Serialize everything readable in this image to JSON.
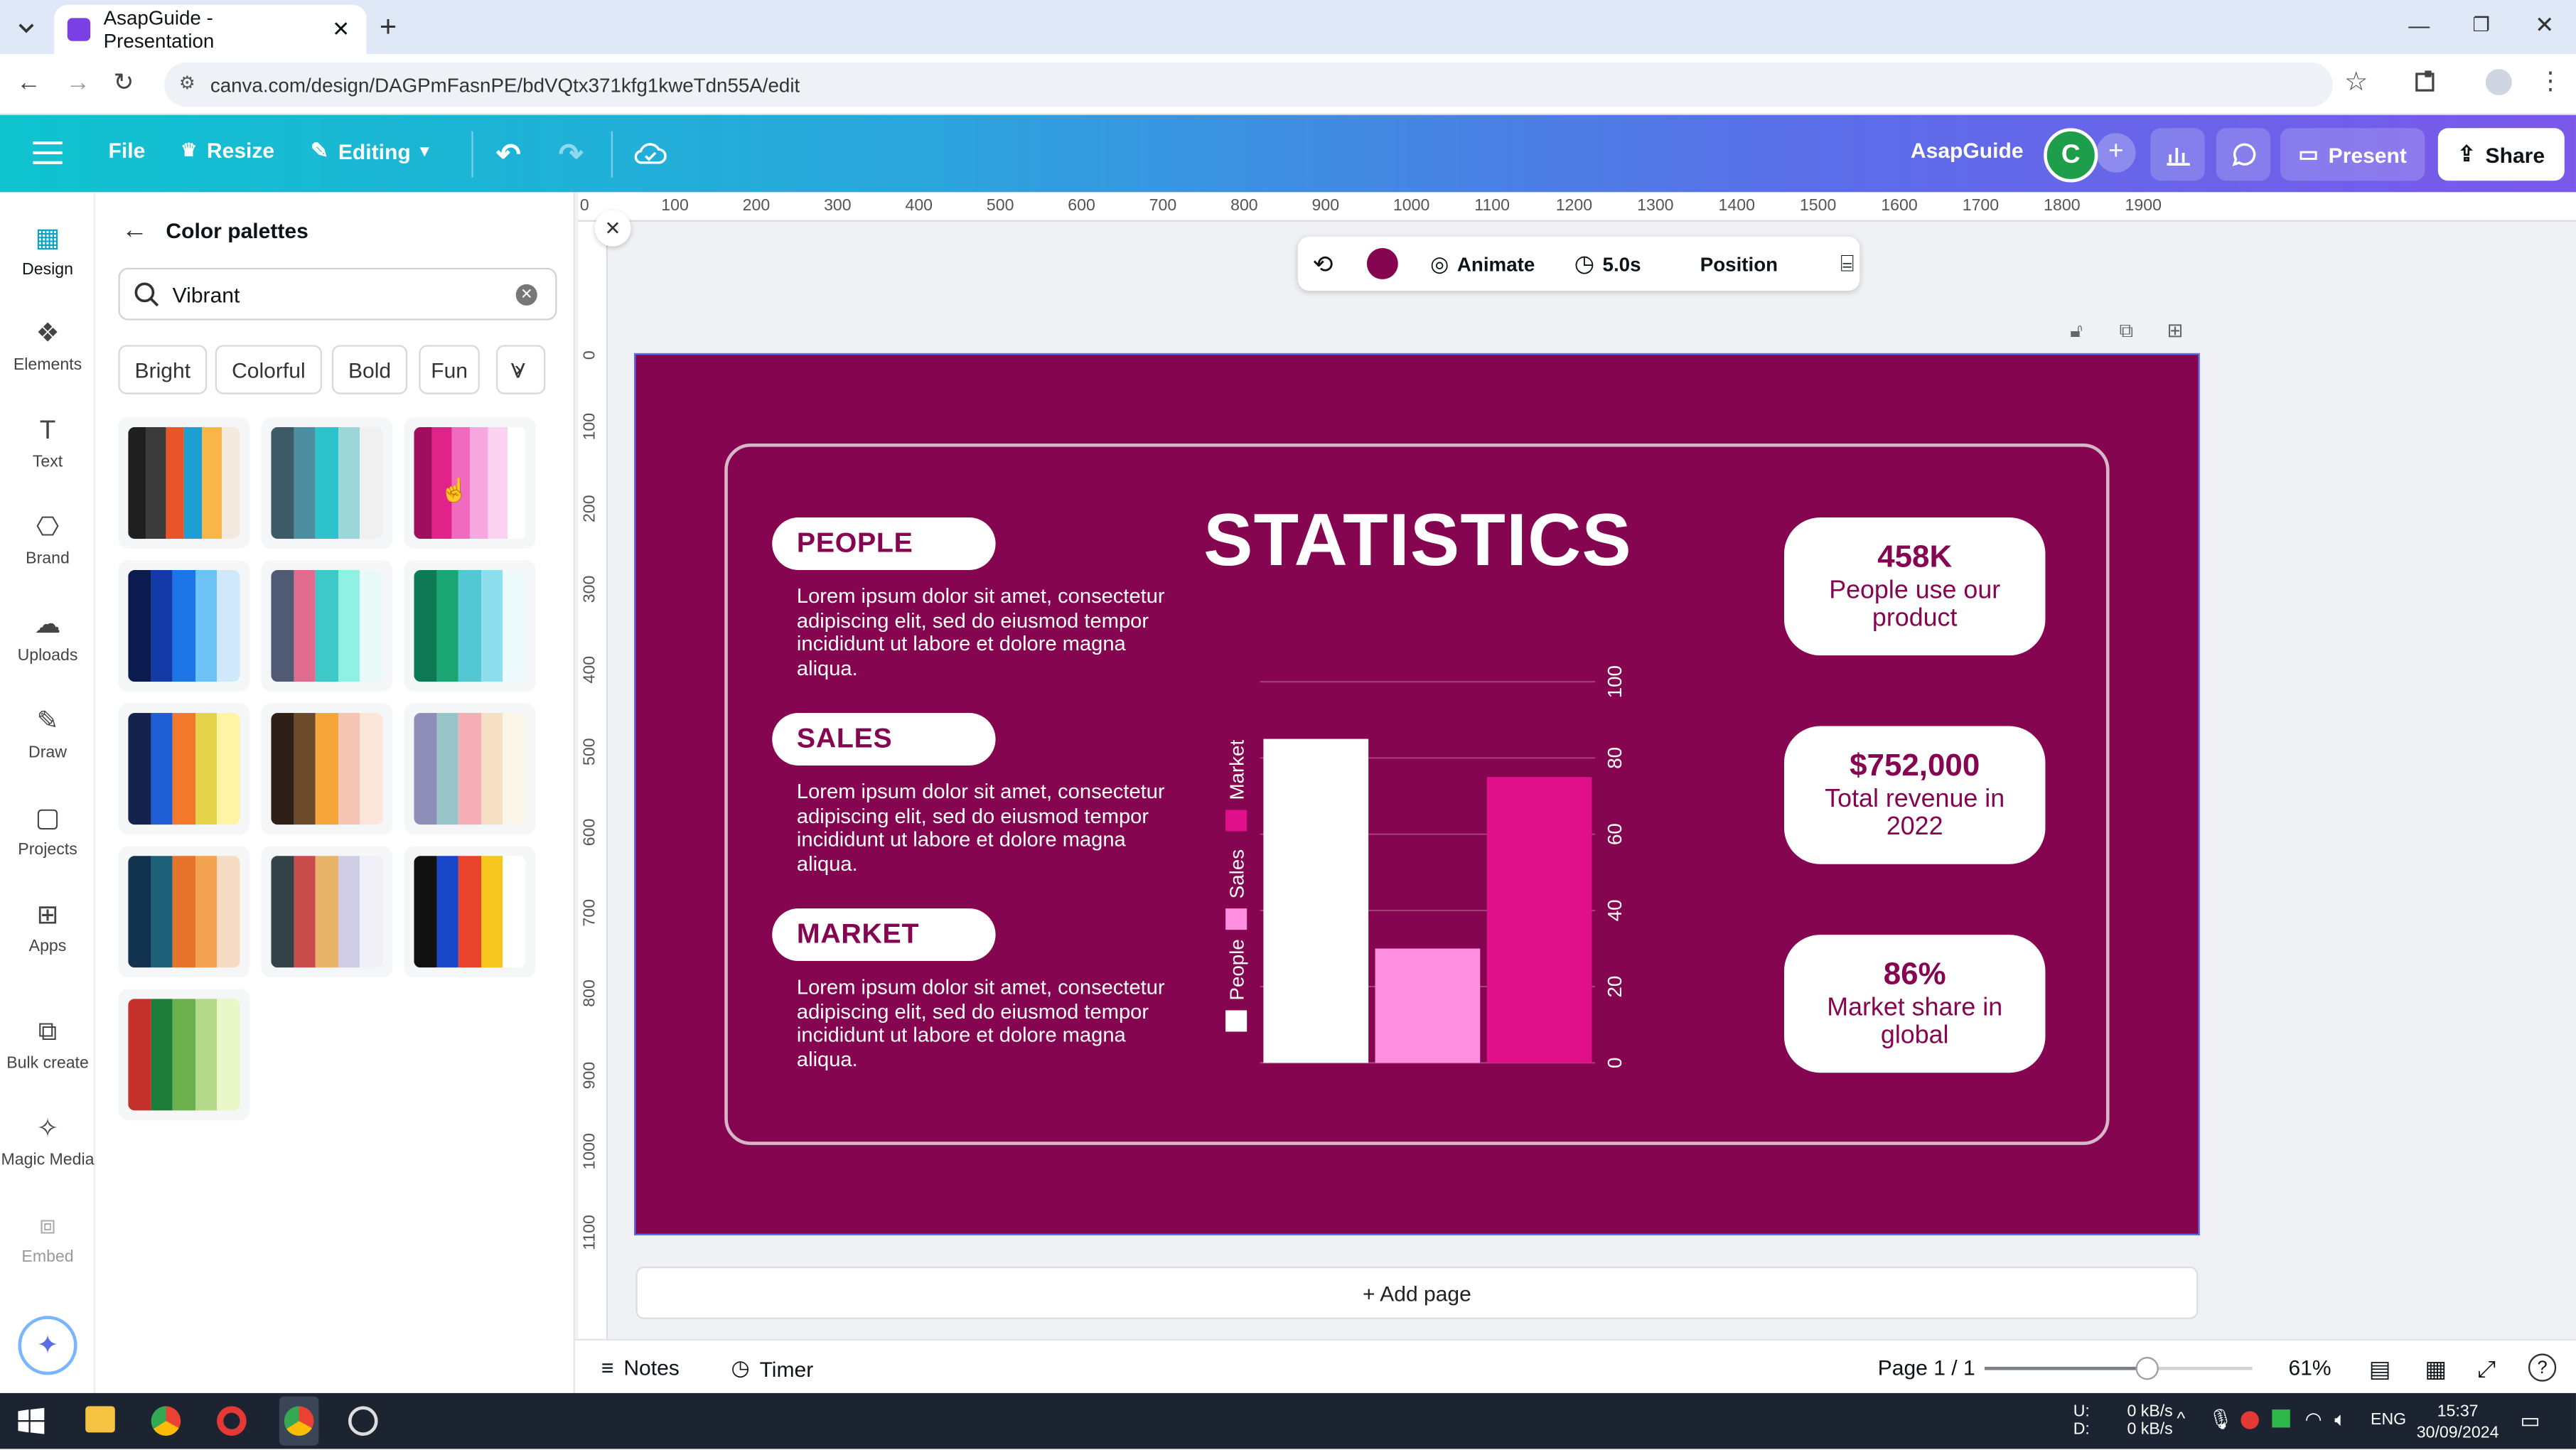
{
  "browser": {
    "tab_title": "AsapGuide - Presentation",
    "url": "canva.com/design/DAGPmFasnPE/bdVQtx371kfg1kweTdn55A/edit"
  },
  "header": {
    "file": "File",
    "resize": "Resize",
    "editing": "Editing",
    "team_name": "AsapGuide",
    "avatar_letter": "C",
    "present": "Present",
    "share": "Share"
  },
  "rail": [
    {
      "label": "Design",
      "icon": "design-icon"
    },
    {
      "label": "Elements",
      "icon": "elements-icon"
    },
    {
      "label": "Text",
      "icon": "text-icon"
    },
    {
      "label": "Brand",
      "icon": "brand-icon"
    },
    {
      "label": "Uploads",
      "icon": "uploads-icon"
    },
    {
      "label": "Draw",
      "icon": "draw-icon"
    },
    {
      "label": "Projects",
      "icon": "projects-icon"
    },
    {
      "label": "Apps",
      "icon": "apps-icon"
    },
    {
      "label": "Bulk create",
      "icon": "bulk-create-icon"
    },
    {
      "label": "Magic Media",
      "icon": "magic-media-icon"
    },
    {
      "label": "Embed",
      "icon": "embed-icon"
    }
  ],
  "panel": {
    "title": "Color palettes",
    "search_value": "Vibrant",
    "chips": [
      "Bright",
      "Colorful",
      "Bold",
      "Fun",
      "V"
    ],
    "palettes": [
      [
        "#1f1f1f",
        "#3a3a3a",
        "#e8552a",
        "#1e9fd4",
        "#f7b54a",
        "#f3e9df"
      ],
      [
        "#3d5a67",
        "#4b8fa0",
        "#2ec3cc",
        "#9cd6d9",
        "#f0f0f0"
      ],
      [
        "#a00f5e",
        "#e12289",
        "#f06bbf",
        "#f7a8de",
        "#fbd3f1",
        "#ffffff"
      ],
      [
        "#0b1a4f",
        "#133aa6",
        "#1d75e8",
        "#6cc1f5",
        "#cfe9fb"
      ],
      [
        "#505a74",
        "#e26c8f",
        "#3ec9c9",
        "#8ff0e4",
        "#e9fbf8"
      ],
      [
        "#0d7a55",
        "#19a574",
        "#53c7d2",
        "#8ddff0",
        "#eefbfd"
      ],
      [
        "#15224d",
        "#1f5dd6",
        "#f4782c",
        "#e3d44a",
        "#fff4a3"
      ],
      [
        "#2e1f17",
        "#6c4b2b",
        "#f6a53a",
        "#f6c4b3",
        "#fde6d9"
      ],
      [
        "#8e8fb9",
        "#98c5c7",
        "#f5aeb5",
        "#f6dfc4",
        "#fbf6ea"
      ],
      [
        "#12334f",
        "#1d6077",
        "#e6752b",
        "#f3a252",
        "#f6dbc2"
      ],
      [
        "#324247",
        "#c84c4c",
        "#e9b369",
        "#cfcde4",
        "#f0eff8"
      ],
      [
        "#111111",
        "#1746c9",
        "#e8432b",
        "#f5c61e",
        "#ffffff"
      ],
      [
        "#c4312a",
        "#1c7c3a",
        "#6ab04c",
        "#b4d98a",
        "#e8f6c8"
      ]
    ]
  },
  "toolbar": {
    "animate": "Animate",
    "duration": "5.0s",
    "position": "Position",
    "fill_color": "#860550"
  },
  "ruler": {
    "top": [
      "0",
      "100",
      "200",
      "300",
      "400",
      "500",
      "600",
      "700",
      "800",
      "900",
      "1000",
      "1100",
      "1200",
      "1300",
      "1400",
      "1500",
      "1600",
      "1700",
      "1800",
      "1900"
    ],
    "left": [
      "0",
      "100",
      "200",
      "300",
      "400",
      "500",
      "600",
      "700",
      "800",
      "900",
      "1000",
      "1100"
    ]
  },
  "slide": {
    "background": "#860550",
    "title": "STATISTICS",
    "sections": [
      {
        "tag": "PEOPLE",
        "text": "Lorem ipsum dolor sit amet, consectetur adipiscing elit, sed do eiusmod tempor incididunt ut labore et dolore magna aliqua."
      },
      {
        "tag": "SALES",
        "text": "Lorem ipsum dolor sit amet, consectetur adipiscing elit, sed do eiusmod tempor incididunt ut labore et dolore magna aliqua."
      },
      {
        "tag": "MARKET",
        "text": "Lorem ipsum dolor sit amet, consectetur adipiscing elit, sed do eiusmod tempor incididunt ut labore et dolore magna aliqua."
      }
    ],
    "stats": [
      {
        "value": "458K",
        "label": "People use our product"
      },
      {
        "value": "$752,000",
        "label": "Total revenue in 2022"
      },
      {
        "value": "86%",
        "label": "Market share in global"
      }
    ]
  },
  "chart_data": {
    "type": "bar",
    "categories": [
      "People",
      "Sales",
      "Market"
    ],
    "values": [
      85,
      30,
      75
    ],
    "colors": [
      "#ffffff",
      "#ff8fe0",
      "#e0108a"
    ],
    "ylim": [
      0,
      100
    ],
    "yticks": [
      "0",
      "20",
      "40",
      "60",
      "80",
      "100"
    ],
    "legend": [
      "People",
      "Sales",
      "Market"
    ],
    "legend_position": "left",
    "grid": true
  },
  "editor": {
    "add_page": "+ Add page"
  },
  "footer": {
    "notes": "Notes",
    "timer": "Timer",
    "page": "Page 1 / 1",
    "zoom": "61%",
    "zoom_level": 0.61
  },
  "taskbar": {
    "net_up_label": "U:",
    "net_down_label": "D:",
    "net_up": "0 kB/s",
    "net_down": "0 kB/s",
    "lang": "ENG",
    "time": "15:37",
    "date": "30/09/2024"
  }
}
